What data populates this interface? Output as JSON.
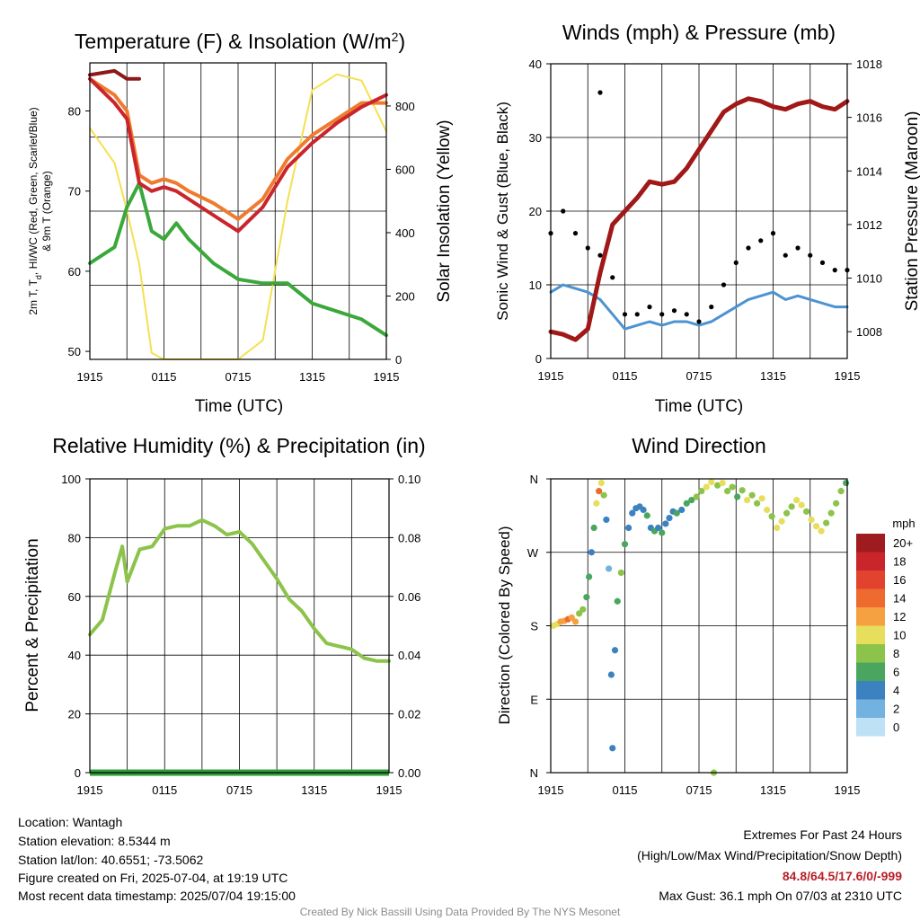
{
  "x_ticks": [
    "1915",
    "0115",
    "0715",
    "1315",
    "1915"
  ],
  "panels": {
    "temp": {
      "title": "Temperature (F) & Insolation (W/m",
      "title_sup": "2",
      "title_close": ")",
      "ylabel_left_line1": "2m T, T",
      "ylabel_left_sub": "d",
      "ylabel_left_line1b": ", HI/WC (Red, Green, Scarlet/Blue)",
      "ylabel_left_line2": "& 9m T (Orange)",
      "ylabel_right": "Solar Insolation (Yellow)",
      "xlabel": "Time (UTC)",
      "yticks_left": [
        "50",
        "60",
        "70",
        "80"
      ],
      "yticks_right": [
        "0",
        "200",
        "400",
        "600",
        "800"
      ]
    },
    "wind": {
      "title": "Winds (mph) & Pressure (mb)",
      "ylabel_left": "Sonic Wind & Gust (Blue, Black)",
      "ylabel_right": "Station Pressure (Maroon)",
      "xlabel": "Time (UTC)",
      "yticks_left": [
        "0",
        "10",
        "20",
        "30",
        "40"
      ],
      "yticks_right": [
        "1008",
        "1010",
        "1012",
        "1014",
        "1016",
        "1018"
      ]
    },
    "rh": {
      "title": "Relative Humidity (%) & Precipitation (in)",
      "ylabel_left": "Percent & Precipitation",
      "yticks_left": [
        "0",
        "20",
        "40",
        "60",
        "80",
        "100"
      ],
      "yticks_right": [
        "0.00",
        "0.02",
        "0.04",
        "0.06",
        "0.08",
        "0.10"
      ]
    },
    "dir": {
      "title": "Wind Direction",
      "ylabel_left": "Direction (Colored By Speed)",
      "yticks_left": [
        "N",
        "E",
        "S",
        "W",
        "N"
      ],
      "legend_title": "mph",
      "legend_labels": [
        "20+",
        "18",
        "16",
        "14",
        "12",
        "10",
        "8",
        "6",
        "4",
        "2",
        "0"
      ],
      "legend_colors": [
        "#9e1b1f",
        "#c9252b",
        "#e2432e",
        "#ef6a2e",
        "#f5a142",
        "#e6de5c",
        "#8cc34a",
        "#4aa65e",
        "#3c82c0",
        "#72b2e0",
        "#bfe1f5"
      ]
    }
  },
  "info": {
    "location": "Location: Wantagh",
    "elevation": "Station elevation: 8.5344 m",
    "latlon": "Station lat/lon: 40.6551; -73.5062",
    "created": "Figure created on Fri, 2025-07-04, at 19:19 UTC",
    "recent": "Most recent data timestamp: 2025/07/04 19:15:00"
  },
  "extremes": {
    "title": "Extremes For Past 24 Hours",
    "subtitle": "(High/Low/Max Wind/Precipitation/Snow Depth)",
    "values": "84.8/64.5/17.6/0/-999",
    "max_gust": "Max Gust: 36.1 mph On 07/03 at 2310 UTC"
  },
  "credit": "Created By Nick Bassill Using Data Provided By The NYS Mesonet",
  "colors": {
    "temp_red": "#c9252b",
    "dewpoint_green": "#3aa83a",
    "heat_index_scarlet": "#8b1a1a",
    "temp9m_orange": "#ef7b2e",
    "insolation_yellow": "#f5e050",
    "wind_blue": "#4b93d1",
    "gust_black": "#000000",
    "pressure_maroon": "#a01818",
    "rh_green": "#8cc34a",
    "precip_green": "#2f9a3a"
  },
  "chart_data": [
    {
      "type": "line",
      "panel": "temp",
      "x_hours": [
        0,
        2,
        3,
        4,
        5,
        6,
        7,
        8,
        10,
        12,
        14,
        16,
        18,
        20,
        22,
        24
      ],
      "ylim_left": [
        49,
        86
      ],
      "ylim_right": [
        0,
        936
      ],
      "series": [
        {
          "key": "t2m",
          "values": [
            84,
            81,
            79,
            71,
            70,
            70.5,
            70,
            69,
            67,
            65,
            68,
            73,
            76,
            78.5,
            80.5,
            82
          ]
        },
        {
          "key": "t9m",
          "values": [
            84,
            82,
            80,
            72,
            71,
            71.5,
            71,
            70,
            68.5,
            66.5,
            69,
            74,
            77,
            79,
            81,
            81
          ]
        },
        {
          "key": "heat_index",
          "values": [
            84.5,
            85,
            84,
            84
          ]
        },
        {
          "key": "dewpoint",
          "values": [
            61,
            63,
            68,
            71,
            65,
            64,
            66,
            64,
            61,
            59,
            58.5,
            58.5,
            56,
            55,
            54,
            52
          ]
        },
        {
          "key": "insolation",
          "values": [
            730,
            620,
            470,
            300,
            20,
            0,
            0,
            0,
            0,
            0,
            60,
            500,
            850,
            900,
            880,
            720
          ]
        }
      ]
    },
    {
      "type": "line",
      "panel": "wind",
      "x_hours": [
        0,
        1,
        2,
        3,
        4,
        5,
        6,
        7,
        8,
        9,
        10,
        11,
        12,
        13,
        14,
        15,
        16,
        17,
        18,
        19,
        20,
        21,
        22,
        23,
        24
      ],
      "ylim_left": [
        0,
        40
      ],
      "ylim_right": [
        1007,
        1018
      ],
      "series": [
        {
          "key": "wind",
          "values": [
            9,
            10,
            9.5,
            9,
            8,
            6,
            4,
            4.5,
            5,
            4.5,
            5,
            5,
            4.5,
            5,
            6,
            7,
            8,
            8.5,
            9,
            8,
            8.5,
            8,
            7.5,
            7,
            7
          ]
        },
        {
          "key": "gust",
          "values": [
            17,
            20,
            17,
            15,
            14,
            11,
            6,
            6,
            7,
            6,
            6.5,
            6,
            5,
            7,
            10,
            13,
            15,
            16,
            17,
            14,
            15,
            14,
            13,
            12,
            12
          ]
        },
        {
          "key": "pressure",
          "values": [
            1008.0,
            1007.9,
            1007.7,
            1008.1,
            1010.2,
            1012.0,
            1012.5,
            1013.0,
            1013.6,
            1013.5,
            1013.6,
            1014.1,
            1014.8,
            1015.5,
            1016.2,
            1016.5,
            1016.7,
            1016.6,
            1016.4,
            1016.3,
            1016.5,
            1016.6,
            1016.4,
            1016.3,
            1016.6
          ]
        }
      ],
      "gust_peak": {
        "x_hour": 4.0,
        "value": 36.1
      }
    },
    {
      "type": "line",
      "panel": "rh",
      "x_hours": [
        0,
        1,
        2,
        2.6,
        3,
        4,
        5,
        6,
        7,
        8,
        9,
        10,
        11,
        12,
        13,
        14,
        15,
        16,
        17,
        18,
        19,
        20,
        21,
        22,
        23,
        24
      ],
      "ylim_left": [
        0,
        100
      ],
      "ylim_right": [
        0,
        0.1
      ],
      "series": [
        {
          "key": "rh",
          "values": [
            47,
            52,
            68,
            77,
            65,
            76,
            77,
            83,
            84,
            84,
            86,
            84,
            81,
            82,
            78,
            72,
            66,
            59,
            55,
            49,
            44,
            43,
            42,
            39,
            38,
            38
          ]
        },
        {
          "key": "precip",
          "values": [
            0,
            0
          ]
        }
      ]
    },
    {
      "type": "scatter",
      "panel": "dir",
      "xlim": [
        0,
        24
      ],
      "ylim_degrees": [
        0,
        360
      ],
      "points": [
        {
          "x": 0.2,
          "y": 180,
          "speed": 9
        },
        {
          "x": 0.5,
          "y": 182,
          "speed": 9
        },
        {
          "x": 0.8,
          "y": 185,
          "speed": 11
        },
        {
          "x": 1.1,
          "y": 186,
          "speed": 11
        },
        {
          "x": 1.4,
          "y": 188,
          "speed": 13
        },
        {
          "x": 1.7,
          "y": 190,
          "speed": 11
        },
        {
          "x": 2.0,
          "y": 185,
          "speed": 12
        },
        {
          "x": 2.3,
          "y": 195,
          "speed": 7
        },
        {
          "x": 2.6,
          "y": 200,
          "speed": 8
        },
        {
          "x": 2.9,
          "y": 215,
          "speed": 6
        },
        {
          "x": 3.1,
          "y": 240,
          "speed": 5
        },
        {
          "x": 3.3,
          "y": 270,
          "speed": 4
        },
        {
          "x": 3.5,
          "y": 300,
          "speed": 5
        },
        {
          "x": 3.7,
          "y": 330,
          "speed": 10
        },
        {
          "x": 3.9,
          "y": 345,
          "speed": 14
        },
        {
          "x": 4.1,
          "y": 355,
          "speed": 9
        },
        {
          "x": 4.3,
          "y": 340,
          "speed": 7
        },
        {
          "x": 4.5,
          "y": 310,
          "speed": 3
        },
        {
          "x": 4.7,
          "y": 250,
          "speed": 2
        },
        {
          "x": 4.9,
          "y": 120,
          "speed": 3
        },
        {
          "x": 5.0,
          "y": 30,
          "speed": 3
        },
        {
          "x": 5.2,
          "y": 150,
          "speed": 4
        },
        {
          "x": 5.4,
          "y": 210,
          "speed": 6
        },
        {
          "x": 5.7,
          "y": 245,
          "speed": 7
        },
        {
          "x": 6.0,
          "y": 280,
          "speed": 5
        },
        {
          "x": 6.3,
          "y": 300,
          "speed": 4
        },
        {
          "x": 6.6,
          "y": 318,
          "speed": 4
        },
        {
          "x": 6.9,
          "y": 324,
          "speed": 4
        },
        {
          "x": 7.2,
          "y": 326,
          "speed": 4
        },
        {
          "x": 7.5,
          "y": 322,
          "speed": 4
        },
        {
          "x": 7.8,
          "y": 315,
          "speed": 5
        },
        {
          "x": 8.1,
          "y": 300,
          "speed": 4
        },
        {
          "x": 8.4,
          "y": 296,
          "speed": 5
        },
        {
          "x": 8.7,
          "y": 300,
          "speed": 4
        },
        {
          "x": 9.0,
          "y": 294,
          "speed": 6
        },
        {
          "x": 9.3,
          "y": 305,
          "speed": 4
        },
        {
          "x": 9.6,
          "y": 312,
          "speed": 4
        },
        {
          "x": 9.9,
          "y": 320,
          "speed": 4
        },
        {
          "x": 10.2,
          "y": 318,
          "speed": 5
        },
        {
          "x": 10.6,
          "y": 322,
          "speed": 4
        },
        {
          "x": 11.0,
          "y": 330,
          "speed": 5
        },
        {
          "x": 11.4,
          "y": 334,
          "speed": 6
        },
        {
          "x": 11.8,
          "y": 338,
          "speed": 7
        },
        {
          "x": 12.2,
          "y": 345,
          "speed": 8
        },
        {
          "x": 12.6,
          "y": 350,
          "speed": 10
        },
        {
          "x": 13.0,
          "y": 356,
          "speed": 9
        },
        {
          "x": 13.2,
          "y": 0,
          "speed": 7
        },
        {
          "x": 13.5,
          "y": 352,
          "speed": 8
        },
        {
          "x": 13.9,
          "y": 355,
          "speed": 10
        },
        {
          "x": 14.3,
          "y": 345,
          "speed": 7
        },
        {
          "x": 14.7,
          "y": 350,
          "speed": 8
        },
        {
          "x": 15.1,
          "y": 338,
          "speed": 6
        },
        {
          "x": 15.5,
          "y": 346,
          "speed": 7
        },
        {
          "x": 15.9,
          "y": 334,
          "speed": 9
        },
        {
          "x": 16.3,
          "y": 340,
          "speed": 8
        },
        {
          "x": 16.7,
          "y": 330,
          "speed": 7
        },
        {
          "x": 17.1,
          "y": 336,
          "speed": 9
        },
        {
          "x": 17.5,
          "y": 322,
          "speed": 10
        },
        {
          "x": 17.9,
          "y": 314,
          "speed": 8
        },
        {
          "x": 18.3,
          "y": 300,
          "speed": 9
        },
        {
          "x": 18.7,
          "y": 308,
          "speed": 10
        },
        {
          "x": 19.1,
          "y": 318,
          "speed": 7
        },
        {
          "x": 19.5,
          "y": 326,
          "speed": 8
        },
        {
          "x": 19.9,
          "y": 334,
          "speed": 9
        },
        {
          "x": 20.3,
          "y": 328,
          "speed": 10
        },
        {
          "x": 20.7,
          "y": 320,
          "speed": 8
        },
        {
          "x": 21.1,
          "y": 310,
          "speed": 9
        },
        {
          "x": 21.5,
          "y": 302,
          "speed": 10
        },
        {
          "x": 21.9,
          "y": 296,
          "speed": 9
        },
        {
          "x": 22.3,
          "y": 306,
          "speed": 8
        },
        {
          "x": 22.7,
          "y": 318,
          "speed": 7
        },
        {
          "x": 23.1,
          "y": 330,
          "speed": 8
        },
        {
          "x": 23.5,
          "y": 345,
          "speed": 7
        },
        {
          "x": 23.9,
          "y": 355,
          "speed": 6
        }
      ]
    }
  ]
}
